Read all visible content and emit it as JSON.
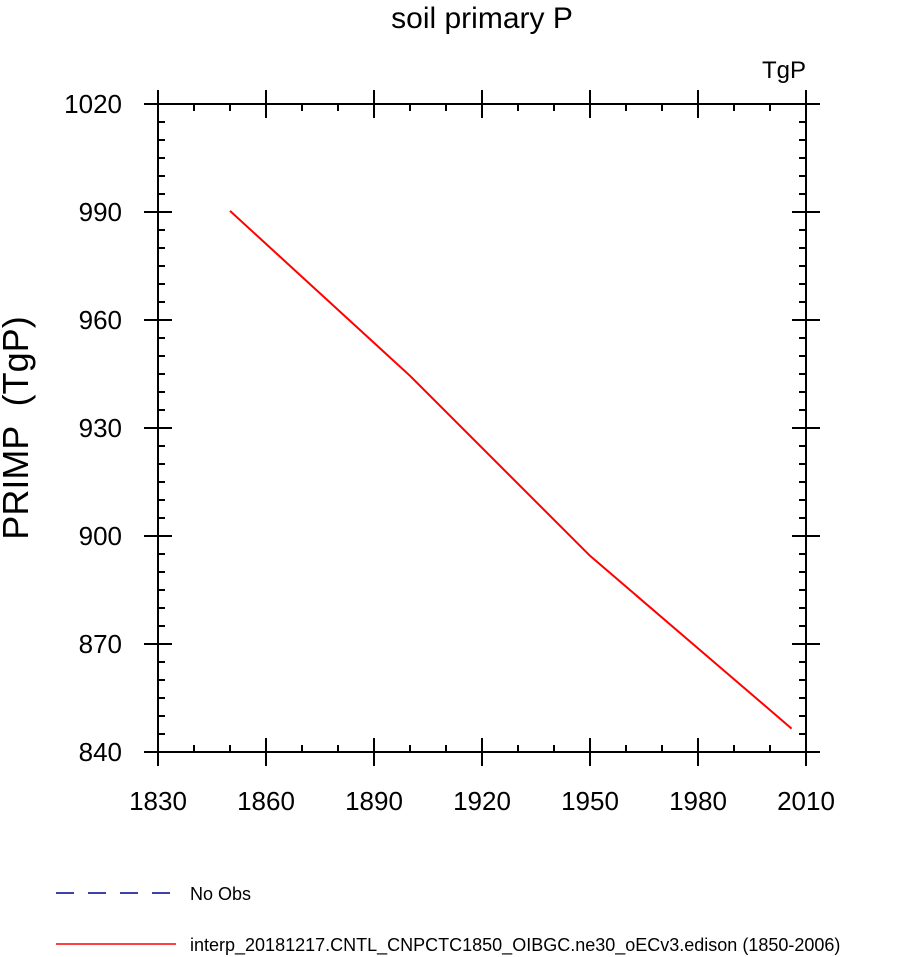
{
  "chart_data": {
    "type": "line",
    "title": "soil primary P",
    "units_label": "TgP",
    "ylabel": "PRIMP  (TgP)",
    "xlabel": "",
    "xlim": [
      1830,
      2010
    ],
    "ylim": [
      840,
      1020
    ],
    "xticks": [
      1830,
      1860,
      1890,
      1920,
      1950,
      1980,
      2010
    ],
    "yticks": [
      840,
      870,
      900,
      930,
      960,
      990,
      1020
    ],
    "x_minor_step": 10,
    "y_minor_step": 5,
    "grid": false,
    "series": [
      {
        "name": "interp_20181217.CNTL_CNPCTC1850_OIBGC.ne30_oECv3.edison (1850-2006)",
        "color": "#ff0000",
        "dash": "solid",
        "x": [
          1850,
          1900,
          1950,
          2006
        ],
        "y": [
          990.3,
          944.5,
          894.5,
          846.5
        ]
      }
    ],
    "legend": {
      "placement": "bottom-left",
      "entries": [
        {
          "label": "No Obs",
          "color": "#00008b",
          "dash": "dashed"
        },
        {
          "label": "interp_20181217.CNTL_CNPCTC1850_OIBGC.ne30_oECv3.edison (1850-2006)",
          "color": "#ff0000",
          "dash": "solid"
        }
      ]
    }
  }
}
